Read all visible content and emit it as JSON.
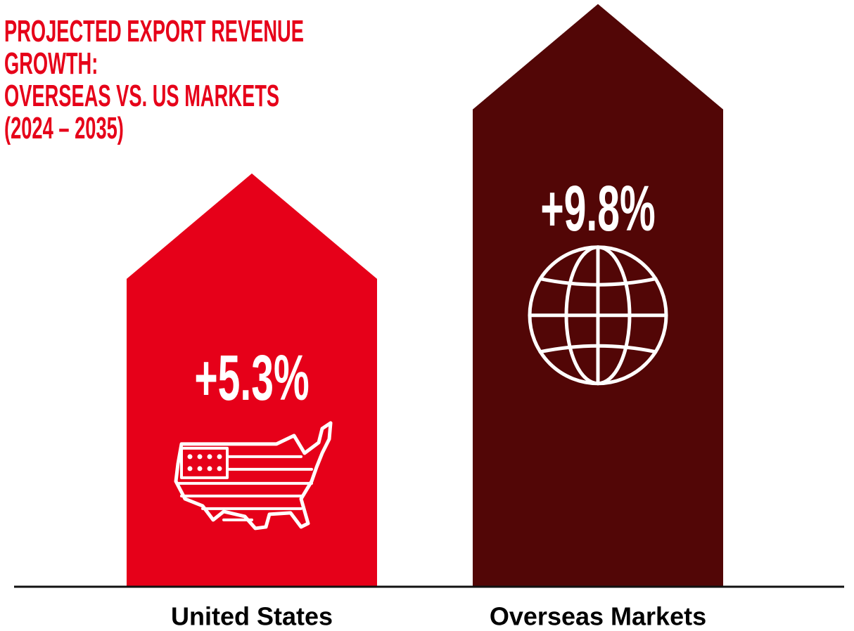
{
  "chart_data": {
    "type": "bar",
    "title": "PROJECTED EXPORT REVENUE GROWTH:\nOVERSEAS VS. US MARKETS\n(2024 – 2035)",
    "categories": [
      "United States",
      "Overseas Markets"
    ],
    "values": [
      5.3,
      9.8
    ],
    "value_labels": [
      "+5.3%",
      "+9.8%"
    ],
    "colors": [
      "#e60019",
      "#520606"
    ]
  }
}
